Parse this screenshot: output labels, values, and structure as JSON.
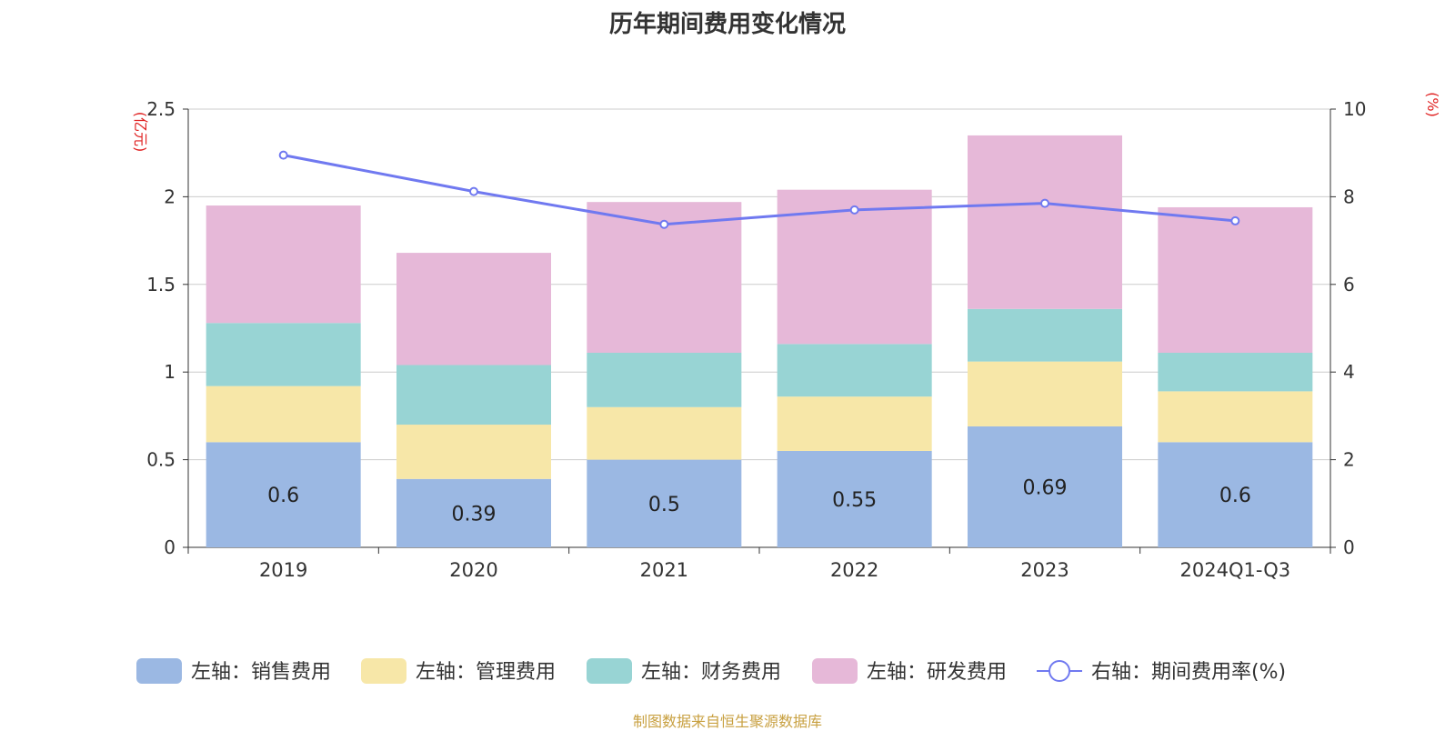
{
  "chart_data": {
    "type": "bar",
    "title": "历年期间费用变化情况",
    "categories": [
      "2019",
      "2020",
      "2021",
      "2022",
      "2023",
      "2024Q1-Q3"
    ],
    "left_axis": {
      "unit_label": "(亿元)",
      "range": [
        0,
        2.5
      ],
      "ticks": [
        "0",
        "0.5",
        "1",
        "1.5",
        "2",
        "2.5"
      ],
      "tick_values": [
        0,
        0.5,
        1,
        1.5,
        2,
        2.5
      ]
    },
    "right_axis": {
      "unit_label": "(%)",
      "range": [
        0,
        10
      ],
      "ticks": [
        "0",
        "2",
        "4",
        "6",
        "8",
        "10"
      ],
      "tick_values": [
        0,
        2,
        4,
        6,
        8,
        10
      ]
    },
    "grid": true,
    "legend_position": "bottom",
    "series": [
      {
        "name": "左轴：销售费用",
        "type": "bar",
        "stack": "total",
        "color": "#9bb8e3",
        "values": [
          0.6,
          0.39,
          0.5,
          0.55,
          0.69,
          0.6
        ],
        "labels": [
          "0.6",
          "0.39",
          "0.5",
          "0.55",
          "0.69",
          "0.6"
        ]
      },
      {
        "name": "左轴：管理费用",
        "type": "bar",
        "stack": "total",
        "color": "#f7e7a8",
        "values": [
          0.32,
          0.31,
          0.3,
          0.31,
          0.37,
          0.29
        ]
      },
      {
        "name": "左轴：财务费用",
        "type": "bar",
        "stack": "total",
        "color": "#98d4d4",
        "values": [
          0.36,
          0.34,
          0.31,
          0.3,
          0.3,
          0.22
        ]
      },
      {
        "name": "左轴：研发费用",
        "type": "bar",
        "stack": "total",
        "color": "#e6b8d8",
        "values": [
          0.67,
          0.64,
          0.86,
          0.88,
          0.99,
          0.83
        ]
      },
      {
        "name": "右轴：期间费用率(%)",
        "type": "line",
        "axis": "right",
        "color": "#7079f0",
        "values": [
          8.95,
          8.12,
          7.37,
          7.7,
          7.85,
          7.45
        ]
      }
    ]
  },
  "source_note": "制图数据来自恒生聚源数据库"
}
